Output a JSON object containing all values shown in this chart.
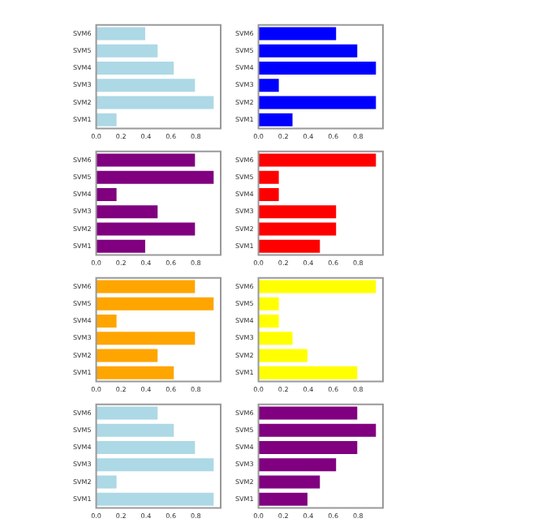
{
  "chart_data": [
    {
      "type": "bar",
      "orientation": "horizontal",
      "categories": [
        "SVM6",
        "SVM5",
        "SVM4",
        "SVM3",
        "SVM2",
        "SVM1"
      ],
      "values": [
        0.4,
        0.5,
        0.63,
        0.8,
        0.95,
        0.17
      ],
      "color": "#add8e6",
      "xlim": [
        0,
        1
      ],
      "xticks": [
        {
          "value": 0,
          "label": "0.0"
        },
        {
          "value": 0.2,
          "label": "0.2"
        },
        {
          "value": 0.4,
          "label": "0.4"
        },
        {
          "value": 0.6,
          "label": "0.6"
        },
        {
          "value": 0.8,
          "label": "0.8"
        }
      ],
      "grid": false
    },
    {
      "type": "bar",
      "orientation": "horizontal",
      "categories": [
        "SVM6",
        "SVM5",
        "SVM4",
        "SVM3",
        "SVM2",
        "SVM1"
      ],
      "values": [
        0.63,
        0.8,
        0.95,
        0.17,
        0.95,
        0.28
      ],
      "color": "#0000ff",
      "xlim": [
        0,
        1
      ],
      "xticks": [
        {
          "value": 0,
          "label": "0.0"
        },
        {
          "value": 0.2,
          "label": "0.2"
        },
        {
          "value": 0.4,
          "label": "0.4"
        },
        {
          "value": 0.6,
          "label": "0.6"
        },
        {
          "value": 0.8,
          "label": "0.8"
        }
      ],
      "grid": false
    },
    {
      "type": "bar",
      "orientation": "horizontal",
      "categories": [
        "SVM6",
        "SVM5",
        "SVM4",
        "SVM3",
        "SVM2",
        "SVM1"
      ],
      "values": [
        0.8,
        0.95,
        0.17,
        0.5,
        0.8,
        0.4
      ],
      "color": "#800080",
      "xlim": [
        0,
        1
      ],
      "xticks": [
        {
          "value": 0,
          "label": "0.0"
        },
        {
          "value": 0.2,
          "label": "0.2"
        },
        {
          "value": 0.4,
          "label": "0.4"
        },
        {
          "value": 0.6,
          "label": "0.6"
        },
        {
          "value": 0.8,
          "label": "0.8"
        }
      ],
      "grid": false
    },
    {
      "type": "bar",
      "orientation": "horizontal",
      "categories": [
        "SVM6",
        "SVM5",
        "SVM4",
        "SVM3",
        "SVM2",
        "SVM1"
      ],
      "values": [
        0.95,
        0.17,
        0.17,
        0.63,
        0.63,
        0.5
      ],
      "color": "#ff0000",
      "xlim": [
        0,
        1
      ],
      "xticks": [
        {
          "value": 0,
          "label": "0.0"
        },
        {
          "value": 0.2,
          "label": "0.2"
        },
        {
          "value": 0.4,
          "label": "0.4"
        },
        {
          "value": 0.6,
          "label": "0.6"
        },
        {
          "value": 0.8,
          "label": "0.8"
        }
      ],
      "grid": false
    },
    {
      "type": "bar",
      "orientation": "horizontal",
      "categories": [
        "SVM6",
        "SVM5",
        "SVM4",
        "SVM3",
        "SVM2",
        "SVM1"
      ],
      "values": [
        0.8,
        0.95,
        0.17,
        0.8,
        0.5,
        0.63
      ],
      "color": "#ffa500",
      "xlim": [
        0,
        1
      ],
      "xticks": [
        {
          "value": 0,
          "label": "0.0"
        },
        {
          "value": 0.2,
          "label": "0.2"
        },
        {
          "value": 0.4,
          "label": "0.4"
        },
        {
          "value": 0.6,
          "label": "0.6"
        },
        {
          "value": 0.8,
          "label": "0.8"
        }
      ],
      "grid": false
    },
    {
      "type": "bar",
      "orientation": "horizontal",
      "categories": [
        "SVM6",
        "SVM5",
        "SVM4",
        "SVM3",
        "SVM2",
        "SVM1"
      ],
      "values": [
        0.95,
        0.17,
        0.17,
        0.28,
        0.4,
        0.8
      ],
      "color": "#ffff00",
      "xlim": [
        0,
        1
      ],
      "xticks": [
        {
          "value": 0,
          "label": "0.0"
        },
        {
          "value": 0.2,
          "label": "0.2"
        },
        {
          "value": 0.4,
          "label": "0.4"
        },
        {
          "value": 0.6,
          "label": "0.6"
        },
        {
          "value": 0.8,
          "label": "0.8"
        }
      ],
      "grid": false
    },
    {
      "type": "bar",
      "orientation": "horizontal",
      "categories": [
        "SVM6",
        "SVM5",
        "SVM4",
        "SVM3",
        "SVM2",
        "SVM1"
      ],
      "values": [
        0.5,
        0.63,
        0.8,
        0.95,
        0.17,
        0.95
      ],
      "color": "#add8e6",
      "xlim": [
        0,
        1
      ],
      "xticks": [
        {
          "value": 0,
          "label": "0.0"
        },
        {
          "value": 0.2,
          "label": "0.2"
        },
        {
          "value": 0.4,
          "label": "0.4"
        },
        {
          "value": 0.6,
          "label": "0.6"
        },
        {
          "value": 0.8,
          "label": "0.8"
        }
      ],
      "grid": false
    },
    {
      "type": "bar",
      "orientation": "horizontal",
      "categories": [
        "SVM6",
        "SVM5",
        "SVM4",
        "SVM3",
        "SVM2",
        "SVM1"
      ],
      "values": [
        0.8,
        0.95,
        0.8,
        0.63,
        0.5,
        0.4
      ],
      "color": "#800080",
      "xlim": [
        0,
        1
      ],
      "xticks": [
        {
          "value": 0,
          "label": "0.0"
        },
        {
          "value": 0.2,
          "label": "0.2"
        },
        {
          "value": 0.4,
          "label": "0.4"
        },
        {
          "value": 0.6,
          "label": "0.6"
        },
        {
          "value": 0.8,
          "label": "0.8"
        }
      ],
      "grid": false
    }
  ]
}
